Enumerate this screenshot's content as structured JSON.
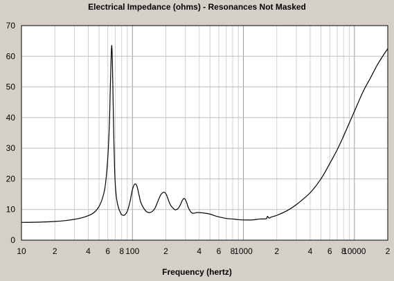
{
  "chart_data": {
    "type": "line",
    "title": "Electrical Impedance (ohms) - Resonances Not Masked",
    "xlabel": "Frequency (hertz)",
    "ylabel": "",
    "x_scale": "log",
    "xlim": [
      10,
      20000
    ],
    "ylim": [
      0,
      70
    ],
    "grid": true,
    "y_ticks": [
      "0",
      "10",
      "20",
      "30",
      "40",
      "50",
      "60",
      "70"
    ],
    "x_ticks": [
      {
        "value": 10,
        "label": "10"
      },
      {
        "value": 20,
        "label": "2"
      },
      {
        "value": 40,
        "label": "4"
      },
      {
        "value": 60,
        "label": "6"
      },
      {
        "value": 80,
        "label": "8"
      },
      {
        "value": 100,
        "label": "100"
      },
      {
        "value": 200,
        "label": "2"
      },
      {
        "value": 400,
        "label": "4"
      },
      {
        "value": 600,
        "label": "6"
      },
      {
        "value": 800,
        "label": "8"
      },
      {
        "value": 1000,
        "label": "1000"
      },
      {
        "value": 2000,
        "label": "2"
      },
      {
        "value": 4000,
        "label": "4"
      },
      {
        "value": 6000,
        "label": "6"
      },
      {
        "value": 8000,
        "label": "8"
      },
      {
        "value": 10000,
        "label": "10000"
      },
      {
        "value": 20000,
        "label": "2"
      }
    ],
    "series": [
      {
        "color": "#000000",
        "x": [
          10,
          15,
          20,
          25,
          30,
          35,
          40,
          45,
          50,
          54,
          57,
          60,
          62,
          63,
          64,
          65,
          66,
          67,
          68,
          69,
          70,
          72,
          75,
          78,
          80,
          85,
          90,
          95,
          100,
          105,
          110,
          115,
          120,
          130,
          140,
          150,
          160,
          170,
          180,
          190,
          200,
          210,
          220,
          240,
          250,
          260,
          270,
          280,
          290,
          300,
          310,
          320,
          340,
          360,
          380,
          400,
          450,
          500,
          550,
          600,
          700,
          800,
          900,
          1000,
          1200,
          1400,
          1600,
          1650,
          1700,
          1800,
          2000,
          2500,
          3000,
          4000,
          5000,
          6000,
          7000,
          8000,
          10000,
          12000,
          14000,
          16000,
          18000,
          20000
        ],
        "y": [
          5.8,
          5.9,
          6.1,
          6.4,
          6.8,
          7.3,
          8.0,
          9.0,
          11.0,
          14.0,
          18.0,
          27.0,
          38.0,
          48.0,
          57.0,
          63.5,
          58.0,
          45.0,
          33.0,
          24.0,
          18.5,
          13.5,
          10.5,
          9.0,
          8.3,
          8.2,
          9.5,
          12.5,
          16.5,
          18.3,
          17.5,
          14.5,
          12.0,
          9.8,
          9.0,
          9.3,
          10.5,
          12.8,
          14.8,
          15.6,
          15.2,
          13.3,
          11.5,
          10.0,
          10.0,
          10.5,
          11.5,
          12.8,
          13.6,
          13.2,
          12.0,
          10.5,
          9.0,
          8.8,
          9.0,
          9.0,
          8.8,
          8.5,
          8.0,
          7.6,
          7.1,
          6.9,
          6.7,
          6.6,
          6.6,
          6.9,
          7.0,
          7.8,
          7.2,
          7.6,
          8.1,
          9.7,
          11.6,
          15.5,
          20.0,
          25.0,
          29.5,
          34.0,
          42.0,
          48.5,
          53.0,
          57.0,
          60.0,
          62.5
        ]
      }
    ]
  }
}
